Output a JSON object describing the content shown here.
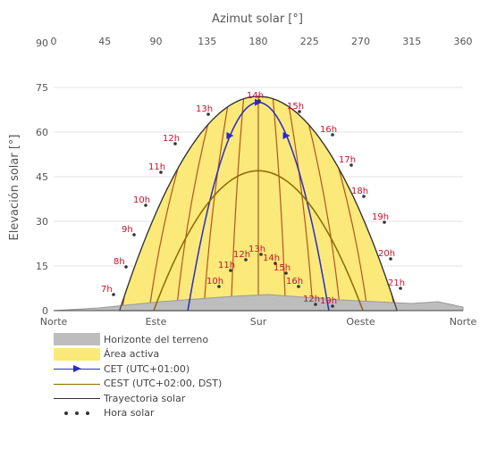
{
  "chart_data": {
    "type": "line",
    "title": "",
    "x_axis_top": {
      "label": "Azimut solar [°]",
      "ticks": [
        "0",
        "45",
        "90",
        "135",
        "180",
        "225",
        "270",
        "315",
        "360"
      ],
      "range": [
        0,
        360
      ]
    },
    "x_axis_bottom": {
      "ticks": [
        "Norte",
        "Este",
        "Sur",
        "Oeste",
        "Norte"
      ],
      "positions": [
        0,
        90,
        180,
        270,
        360
      ]
    },
    "y_axis": {
      "label": "Elevación solar [°]",
      "ticks": [
        "0",
        "15",
        "30",
        "45",
        "60",
        "75",
        "90"
      ],
      "range": [
        0,
        90
      ]
    },
    "grid": "horizontal",
    "legend_placement": "bottom",
    "series": [
      {
        "name": "CET (UTC+01:00)",
        "points": [
          [
            118,
            1
          ],
          [
            145,
            25
          ],
          [
            180,
            70
          ],
          [
            215,
            25
          ],
          [
            242,
            1
          ]
        ]
      },
      {
        "name": "CEST (UTC+02:00, DST)",
        "points": [
          [
            88,
            1
          ],
          [
            120,
            30
          ],
          [
            180,
            47
          ],
          [
            240,
            30
          ],
          [
            272,
            1
          ]
        ]
      },
      {
        "name": "Trayectoria solar",
        "points": [
          [
            58,
            1
          ],
          [
            88,
            35
          ],
          [
            180,
            72
          ],
          [
            272,
            35
          ],
          [
            302,
            1
          ]
        ]
      }
    ],
    "hour_labels": [
      "7h",
      "8h",
      "9h",
      "10h",
      "11h",
      "12h",
      "13h",
      "14h",
      "15h",
      "16h",
      "17h",
      "18h",
      "19h",
      "20h",
      "21h",
      "10h",
      "11h",
      "12h",
      "13h",
      "14h",
      "15h",
      "16h",
      "12h",
      "19h"
    ],
    "legend": [
      "Horizonte del terreno",
      "Área activa",
      "CET (UTC+01:00)",
      "CEST (UTC+02:00, DST)",
      "Trayectoria solar",
      "Hora solar"
    ],
    "colors": {
      "active_area": "#fbe97a",
      "horizon": "#bdbdbd",
      "cet": "#2a2ac8",
      "cest": "#8a6a00",
      "path": "#333333",
      "hour": "#c8102e"
    }
  }
}
